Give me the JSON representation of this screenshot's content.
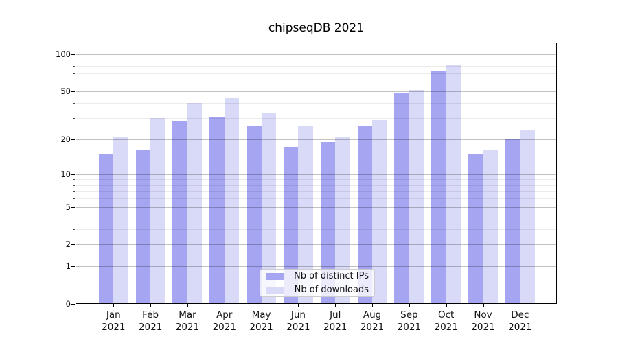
{
  "figure": {
    "title": "chipseqDB 2021",
    "background": "#ffffff"
  },
  "chart_data": {
    "type": "bar",
    "title": "chipseqDB 2021",
    "categories": [
      "Jan 2021",
      "Feb 2021",
      "Mar 2021",
      "Apr 2021",
      "May 2021",
      "Jun 2021",
      "Jul 2021",
      "Aug 2021",
      "Sep 2021",
      "Oct 2021",
      "Nov 2021",
      "Dec 2021"
    ],
    "series": [
      {
        "name": "Nb of distinct IPs",
        "color": "#a5a5f2",
        "values": [
          15,
          16,
          28,
          31,
          26,
          17,
          19,
          26,
          48,
          72,
          15,
          20
        ]
      },
      {
        "name": "Nb of downloads",
        "color": "#d9d9f8",
        "values": [
          21,
          30,
          40,
          44,
          33,
          26,
          21,
          29,
          51,
          81,
          16,
          24
        ]
      }
    ],
    "xlabel": "",
    "ylabel": "",
    "yscale": "log1p",
    "ylim": [
      0,
      124
    ],
    "yticks_major": [
      0,
      1,
      2,
      5,
      10,
      20,
      50,
      100
    ],
    "ytick_labels": [
      "0",
      "1",
      "2",
      "5",
      "10",
      "20",
      "50",
      "100"
    ],
    "yticks_minor": [
      3,
      4,
      6,
      7,
      8,
      9,
      30,
      40,
      60,
      70,
      80,
      90
    ],
    "grid": "horizontal-major-and-minor",
    "legend_position": "lower center",
    "legend_labels": [
      "Nb of distinct IPs",
      "Nb of downloads"
    ]
  }
}
